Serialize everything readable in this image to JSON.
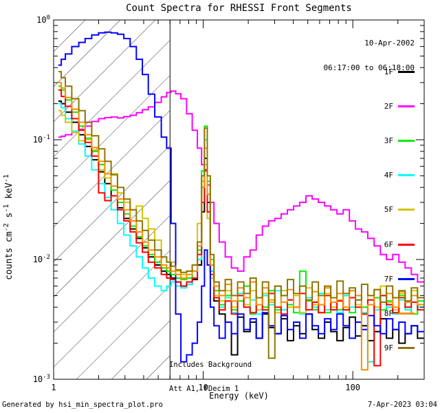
{
  "title": "Count Spectra for RHESSI Front Segments",
  "observation": {
    "date": "10-Apr-2002",
    "time_range": "06:17:00 to 06:18:00"
  },
  "annotation": {
    "line1": "Includes Background",
    "line2": "Att A1, FDecim 1"
  },
  "footer": {
    "generated_by": "Generated by hsi_min_spectra_plot.pro",
    "timestamp": "7-Apr-2023 03:04"
  },
  "chart_data": {
    "type": "line",
    "subtype": "histogram-step-spectra",
    "title": "Count Spectra for RHESSI Front Segments",
    "xlabel": "Energy (keV)",
    "ylabel": "counts cm^{-2} s^{-1} keV^{-1}",
    "x_scale": "log",
    "y_scale": "log",
    "xlim": [
      1,
      300
    ],
    "ylim": [
      0.001,
      1
    ],
    "grid": false,
    "legend_position": "top-right-inside",
    "xticks": [
      {
        "v": 1,
        "label": "1"
      },
      {
        "v": 10,
        "label": "10"
      },
      {
        "v": 100,
        "label": "100"
      }
    ],
    "yticks": [
      {
        "v": 1,
        "label": "10^{0}"
      },
      {
        "v": 0.1,
        "label": "10^{-1}"
      },
      {
        "v": 0.01,
        "label": "10^{-2}"
      },
      {
        "v": 0.001,
        "label": "10^{-3}"
      }
    ],
    "hatched_region": {
      "x_from": 1,
      "x_to": 6,
      "style": "diagonal-lines"
    },
    "vline_kev": 6,
    "frame_color": "#000000",
    "x": [
      1.1,
      1.15,
      1.25,
      1.4,
      1.55,
      1.7,
      1.9,
      2.1,
      2.3,
      2.55,
      2.8,
      3.1,
      3.4,
      3.75,
      4.1,
      4.5,
      5.0,
      5.5,
      5.9,
      6.3,
      6.8,
      7.4,
      8.1,
      8.8,
      9.5,
      10.0,
      10.4,
      10.9,
      11.4,
      12.2,
      13.4,
      14.7,
      16.2,
      17.8,
      19.6,
      21.6,
      23.7,
      26.1,
      28.7,
      31.6,
      34.8,
      38.3,
      42.1,
      46.3,
      51.0,
      56.1,
      61.7,
      67.9,
      74.7,
      82.2,
      90.4,
      99.5,
      109,
      120,
      132,
      146,
      160,
      176,
      194,
      213,
      235,
      258,
      284
    ],
    "series": [
      {
        "name": "1F",
        "color": "#000000",
        "y": [
          0.21,
          0.2,
          0.17,
          0.14,
          0.11,
          0.088,
          0.068,
          0.054,
          0.043,
          0.034,
          0.027,
          0.022,
          0.018,
          0.015,
          0.0125,
          0.0105,
          0.009,
          0.008,
          0.0075,
          0.007,
          0.0065,
          0.006,
          0.0062,
          0.0068,
          0.009,
          0.025,
          0.07,
          0.03,
          0.008,
          0.0045,
          0.0035,
          0.003,
          0.0016,
          0.0033,
          0.0025,
          0.003,
          0.0022,
          0.0035,
          0.0027,
          0.0024,
          0.0032,
          0.0021,
          0.0028,
          0.0024,
          0.0035,
          0.0026,
          0.0022,
          0.003,
          0.0025,
          0.0021,
          0.0027,
          0.0033,
          0.0023,
          0.0028,
          0.0021,
          0.0025,
          0.0032,
          0.0022,
          0.0026,
          0.002,
          0.0024,
          0.0028,
          0.0022
        ]
      },
      {
        "name": "2F",
        "color": "#FF00FF",
        "y": [
          0.105,
          0.107,
          0.11,
          0.115,
          0.122,
          0.13,
          0.142,
          0.15,
          0.153,
          0.155,
          0.152,
          0.156,
          0.16,
          0.168,
          0.178,
          0.188,
          0.205,
          0.228,
          0.248,
          0.255,
          0.242,
          0.22,
          0.165,
          0.12,
          0.085,
          0.062,
          0.055,
          0.042,
          0.03,
          0.02,
          0.014,
          0.0105,
          0.0085,
          0.008,
          0.0105,
          0.012,
          0.016,
          0.019,
          0.021,
          0.022,
          0.024,
          0.026,
          0.028,
          0.03,
          0.034,
          0.032,
          0.03,
          0.028,
          0.026,
          0.024,
          0.026,
          0.021,
          0.018,
          0.017,
          0.015,
          0.013,
          0.011,
          0.01,
          0.011,
          0.0095,
          0.0085,
          0.0075,
          0.0065
        ]
      },
      {
        "name": "3F",
        "color": "#00EE00",
        "y": [
          0.28,
          0.26,
          0.215,
          0.17,
          0.13,
          0.103,
          0.08,
          0.062,
          0.048,
          0.038,
          0.03,
          0.024,
          0.019,
          0.0155,
          0.013,
          0.011,
          0.0095,
          0.0085,
          0.008,
          0.0075,
          0.007,
          0.0068,
          0.007,
          0.008,
          0.012,
          0.055,
          0.13,
          0.045,
          0.01,
          0.0055,
          0.0042,
          0.005,
          0.0038,
          0.0045,
          0.006,
          0.0035,
          0.0048,
          0.004,
          0.0055,
          0.0038,
          0.005,
          0.0042,
          0.0036,
          0.008,
          0.0045,
          0.0038,
          0.0052,
          0.0036,
          0.0044,
          0.0038,
          0.005,
          0.0036,
          0.0046,
          0.004,
          0.0034,
          0.0048,
          0.0038,
          0.0045,
          0.0036,
          0.005,
          0.004,
          0.0035,
          0.0045
        ]
      },
      {
        "name": "4F",
        "color": "#00FFFF",
        "y": [
          0.2,
          0.185,
          0.15,
          0.118,
          0.092,
          0.073,
          0.056,
          0.043,
          0.033,
          0.026,
          0.02,
          0.016,
          0.013,
          0.0105,
          0.0085,
          0.007,
          0.006,
          0.0055,
          0.006,
          0.0065,
          0.006,
          0.0058,
          0.0062,
          0.007,
          0.01,
          0.04,
          0.1,
          0.035,
          0.008,
          0.005,
          0.004,
          0.0048,
          0.0036,
          0.0052,
          0.004,
          0.0046,
          0.0035,
          0.005,
          0.0042,
          0.0055,
          0.0038,
          0.0046,
          0.004,
          0.0035,
          0.0048,
          0.004,
          0.0052,
          0.0038,
          0.0044,
          0.0036,
          0.005,
          0.004,
          0.0046,
          0.0036,
          0.0014,
          0.0038,
          0.005,
          0.004,
          0.0035,
          0.0046,
          0.0038,
          0.0044,
          0.004
        ]
      },
      {
        "name": "5F",
        "color": "#D4C400",
        "y": [
          0.175,
          0.16,
          0.14,
          0.115,
          0.098,
          0.1,
          0.082,
          0.056,
          0.048,
          0.052,
          0.036,
          0.03,
          0.026,
          0.028,
          0.022,
          0.018,
          0.0145,
          0.009,
          0.0085,
          0.0095,
          0.008,
          0.0075,
          0.008,
          0.009,
          0.02,
          0.045,
          0.062,
          0.022,
          0.007,
          0.005,
          0.0045,
          0.0055,
          0.004,
          0.005,
          0.0042,
          0.0055,
          0.0038,
          0.0052,
          0.0044,
          0.0036,
          0.0055,
          0.004,
          0.005,
          0.0036,
          0.0058,
          0.0042,
          0.0036,
          0.0052,
          0.004,
          0.0046,
          0.0038,
          0.0055,
          0.0042,
          0.0035,
          0.005,
          0.004,
          0.006,
          0.0044,
          0.0038,
          0.0052,
          0.0045,
          0.0055,
          0.0048
        ]
      },
      {
        "name": "6F",
        "color": "#FF0000",
        "y": [
          0.26,
          0.23,
          0.19,
          0.15,
          0.12,
          0.095,
          0.073,
          0.036,
          0.031,
          0.034,
          0.026,
          0.021,
          0.017,
          0.0138,
          0.0115,
          0.0095,
          0.0085,
          0.0075,
          0.007,
          0.0068,
          0.0065,
          0.006,
          0.0065,
          0.007,
          0.011,
          0.03,
          0.056,
          0.025,
          0.0075,
          0.0048,
          0.0038,
          0.0045,
          0.0035,
          0.005,
          0.004,
          0.0036,
          0.0048,
          0.0038,
          0.0052,
          0.004,
          0.0035,
          0.0046,
          0.004,
          0.0052,
          0.0038,
          0.0044,
          0.0036,
          0.005,
          0.0038,
          0.0045,
          0.0038,
          0.0048,
          0.004,
          0.0035,
          0.0046,
          0.0013,
          0.005,
          0.0042,
          0.0036,
          0.0048,
          0.004,
          0.0044,
          0.0038
        ]
      },
      {
        "name": "7F",
        "color": "#0000FF",
        "y": [
          0.42,
          0.47,
          0.52,
          0.6,
          0.65,
          0.7,
          0.75,
          0.78,
          0.79,
          0.78,
          0.76,
          0.7,
          0.6,
          0.47,
          0.35,
          0.24,
          0.155,
          0.105,
          0.085,
          0.02,
          0.0035,
          0.0014,
          0.0016,
          0.002,
          0.003,
          0.006,
          0.012,
          0.009,
          0.004,
          0.0028,
          0.0022,
          0.003,
          0.0024,
          0.0035,
          0.0026,
          0.0032,
          0.0022,
          0.0036,
          0.0028,
          0.0024,
          0.0034,
          0.0026,
          0.003,
          0.0022,
          0.0035,
          0.0028,
          0.0024,
          0.0032,
          0.0026,
          0.0035,
          0.0028,
          0.0022,
          0.003,
          0.0026,
          0.0034,
          0.0028,
          0.0024,
          0.0032,
          0.0026,
          0.003,
          0.0024,
          0.0028,
          0.0025
        ]
      },
      {
        "name": "8F",
        "color": "#FF8C00",
        "y": [
          0.3,
          0.27,
          0.225,
          0.18,
          0.14,
          0.11,
          0.086,
          0.066,
          0.052,
          0.041,
          0.032,
          0.026,
          0.021,
          0.017,
          0.014,
          0.012,
          0.0105,
          0.009,
          0.0085,
          0.008,
          0.0075,
          0.007,
          0.0075,
          0.008,
          0.013,
          0.04,
          0.085,
          0.035,
          0.009,
          0.006,
          0.005,
          0.0062,
          0.0045,
          0.0058,
          0.0048,
          0.0065,
          0.0042,
          0.0058,
          0.0046,
          0.006,
          0.0044,
          0.0056,
          0.004,
          0.006,
          0.0046,
          0.0054,
          0.0042,
          0.0058,
          0.0044,
          0.0052,
          0.004,
          0.0055,
          0.005,
          0.0012,
          0.0042,
          0.0056,
          0.0044,
          0.0052,
          0.004,
          0.0054,
          0.0044,
          0.005,
          0.0042
        ]
      },
      {
        "name": "9F",
        "color": "#8C7500",
        "y": [
          0.37,
          0.33,
          0.28,
          0.22,
          0.175,
          0.14,
          0.108,
          0.084,
          0.066,
          0.051,
          0.04,
          0.032,
          0.026,
          0.021,
          0.0175,
          0.0145,
          0.012,
          0.0105,
          0.0095,
          0.0088,
          0.0082,
          0.0078,
          0.008,
          0.009,
          0.014,
          0.05,
          0.125,
          0.05,
          0.011,
          0.0065,
          0.0055,
          0.0068,
          0.005,
          0.0065,
          0.0052,
          0.007,
          0.0048,
          0.0065,
          0.0015,
          0.006,
          0.005,
          0.0068,
          0.0052,
          0.006,
          0.0046,
          0.0065,
          0.005,
          0.006,
          0.0048,
          0.0066,
          0.0052,
          0.0058,
          0.0046,
          0.0062,
          0.005,
          0.0056,
          0.0044,
          0.006,
          0.0048,
          0.0055,
          0.0045,
          0.0058,
          0.0048
        ]
      }
    ]
  }
}
